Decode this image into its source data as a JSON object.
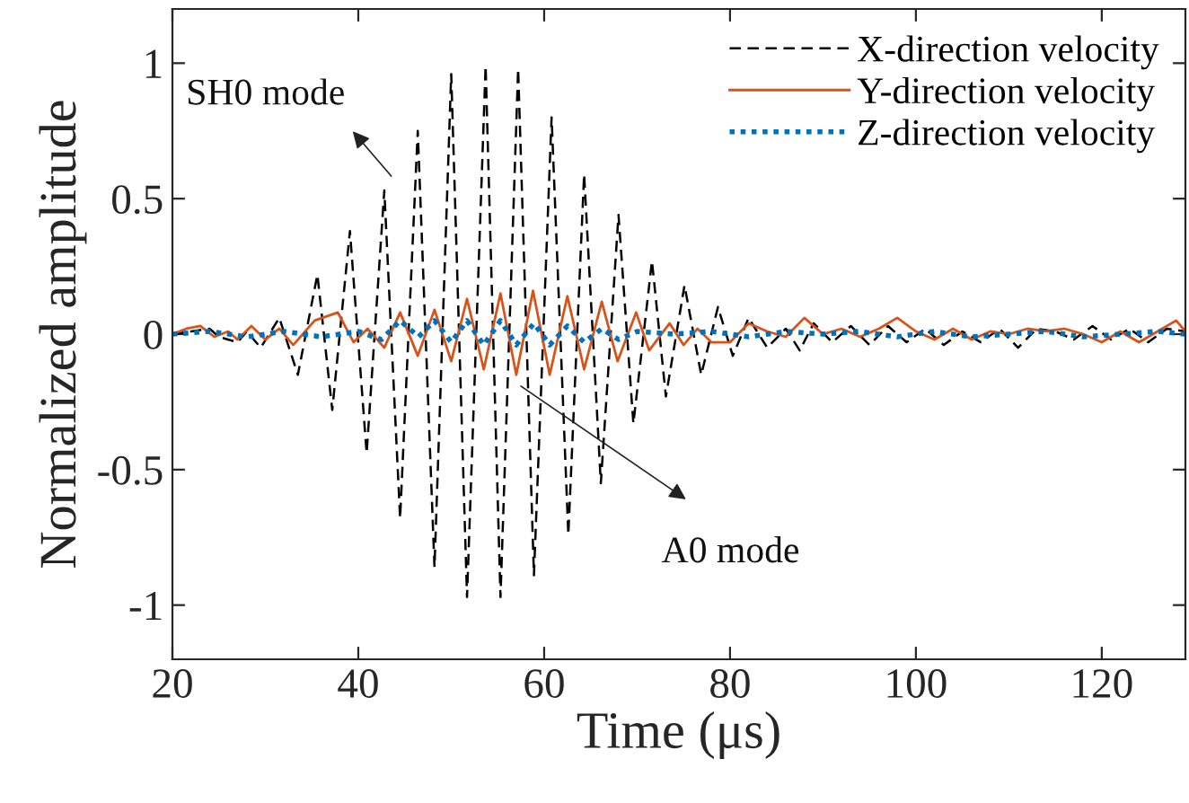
{
  "chart_data": {
    "type": "line",
    "xlabel": "Time (μs)",
    "ylabel": "Normalized amplitude",
    "xlim": [
      20,
      129
    ],
    "xticks": [
      20,
      40,
      60,
      80,
      100,
      120
    ],
    "ylim": [
      -1.2,
      1.2
    ],
    "yticks": [
      -1,
      -0.5,
      0,
      0.5,
      1
    ],
    "grid": false,
    "legend": "top right",
    "series": [
      {
        "name": "X-direction velocity",
        "color": "#000000",
        "line_style": "dashed",
        "x": [
          20,
          22,
          24,
          25,
          27,
          28,
          29.5,
          31.5,
          33.5,
          35.6,
          37.2,
          39.1,
          40.9,
          42.8,
          44.5,
          46.4,
          48.2,
          50.0,
          51.7,
          53.7,
          55.3,
          57.2,
          58.9,
          60.8,
          62.6,
          64.3,
          66.1,
          68.0,
          69.6,
          71.6,
          73.1,
          75.1,
          76.9,
          78.7,
          80.3,
          82,
          84,
          86,
          87.5,
          89,
          91,
          93,
          95,
          97,
          99,
          101,
          103,
          105,
          107,
          109,
          111,
          113,
          115,
          117,
          119,
          121,
          123,
          125,
          127,
          129
        ],
        "values": [
          0,
          0.01,
          0.02,
          -0.01,
          -0.03,
          0.01,
          -0.05,
          0.06,
          -0.15,
          0.22,
          -0.28,
          0.38,
          -0.44,
          0.53,
          -0.68,
          0.75,
          -0.86,
          0.96,
          -0.97,
          0.99,
          -0.97,
          0.98,
          -0.89,
          0.8,
          -0.74,
          0.59,
          -0.55,
          0.44,
          -0.33,
          0.27,
          -0.23,
          0.18,
          -0.15,
          0.1,
          -0.08,
          0.06,
          -0.05,
          0.02,
          -0.06,
          0.04,
          -0.03,
          0.03,
          -0.04,
          0.03,
          -0.03,
          0.02,
          -0.04,
          0.01,
          -0.03,
          0.02,
          -0.05,
          0.02,
          0.01,
          -0.02,
          0.03,
          -0.02,
          0.02,
          -0.03,
          0.02,
          0.01
        ]
      },
      {
        "name": "Y-direction velocity",
        "color": "#d95319",
        "line_style": "solid",
        "x": [
          20,
          21.5,
          23,
          24.5,
          26,
          27,
          28.5,
          30,
          31.5,
          33,
          35.3,
          37.8,
          39.5,
          41,
          42.8,
          44.5,
          46.4,
          48.2,
          50,
          51.7,
          53.5,
          55.3,
          57,
          58.8,
          60.6,
          62.5,
          64.3,
          66.2,
          67.9,
          69.9,
          71.3,
          73.5,
          75,
          76.5,
          78,
          80,
          82,
          84,
          86,
          88,
          90,
          92,
          94,
          96,
          98,
          100,
          102,
          104,
          106,
          108,
          110,
          112,
          114,
          116,
          118,
          120,
          122,
          124,
          126,
          128,
          129
        ],
        "values": [
          0,
          0.02,
          0.03,
          -0.01,
          0.01,
          -0.02,
          0.03,
          -0.02,
          0.02,
          -0.04,
          0.05,
          0.08,
          -0.03,
          0.02,
          -0.05,
          0.08,
          -0.08,
          0.09,
          -0.1,
          0.13,
          -0.13,
          0.15,
          -0.15,
          0.16,
          -0.15,
          0.14,
          -0.13,
          0.12,
          -0.1,
          0.08,
          -0.06,
          0.04,
          -0.04,
          0.02,
          -0.03,
          -0.03,
          0.04,
          0.01,
          -0.01,
          0.06,
          0.0,
          0.02,
          -0.01,
          0.02,
          0.06,
          0.01,
          -0.02,
          0.02,
          -0.02,
          0.01,
          0.0,
          0.02,
          0.01,
          0.02,
          0.0,
          -0.03,
          0.01,
          -0.03,
          0.01,
          0.05,
          0.01
        ]
      },
      {
        "name": "Z-direction velocity",
        "color": "#0072bd",
        "line_style": "dotted",
        "x": [
          20,
          24,
          28,
          32,
          36,
          40,
          42.5,
          44.5,
          46.5,
          48.2,
          50,
          51.7,
          53.5,
          55.3,
          57,
          58.9,
          60.6,
          62.5,
          64.3,
          66.2,
          68,
          70,
          74,
          78,
          82,
          86,
          90,
          94,
          98,
          102,
          106,
          110,
          114,
          118,
          122,
          126,
          129
        ],
        "values": [
          0,
          0.01,
          -0.01,
          0.01,
          -0.01,
          0.01,
          -0.02,
          0.05,
          -0.01,
          0.05,
          -0.03,
          0.05,
          -0.04,
          0.05,
          -0.04,
          0.04,
          -0.04,
          0.03,
          -0.03,
          0.02,
          -0.02,
          0.01,
          0.0,
          0.01,
          -0.01,
          0.01,
          0.0,
          0.01,
          -0.01,
          0.01,
          -0.01,
          0.0,
          0.01,
          -0.01,
          0.0,
          0.01,
          0.0
        ]
      }
    ],
    "annotations": [
      "SH0 mode",
      "A0 mode"
    ]
  }
}
